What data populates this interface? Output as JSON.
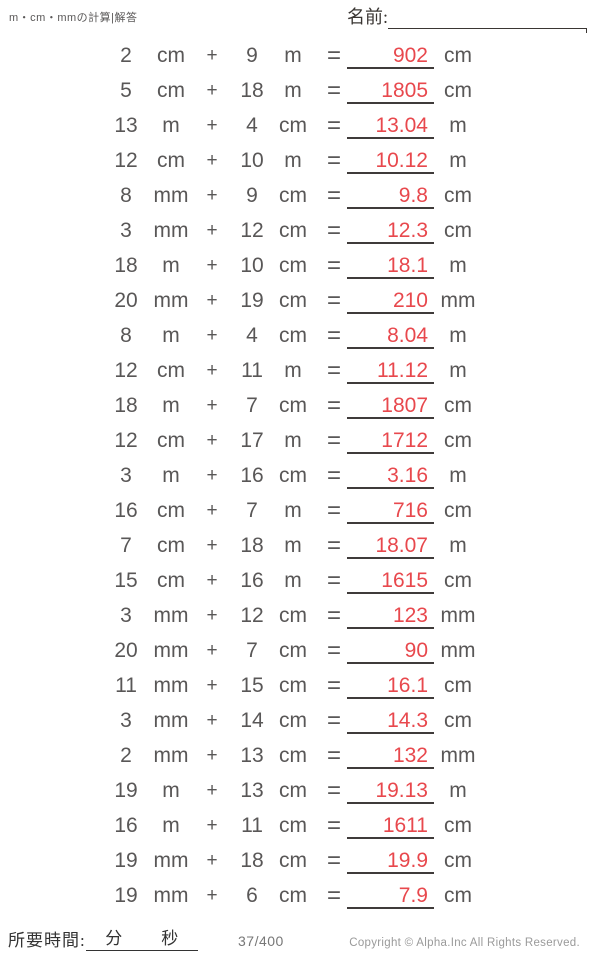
{
  "header": {
    "title": "m・cm・mmの計算|解答",
    "name_label": "名前:"
  },
  "symbols": {
    "plus": "+",
    "equals": "="
  },
  "colors": {
    "answer_red": "#e8484d",
    "problem_gray": "#595757",
    "line_dark": "#3f3b3a"
  },
  "problems": [
    {
      "n1": "2",
      "u1": "cm",
      "n2": "9",
      "u2": "m",
      "answer": "902",
      "u3": "cm"
    },
    {
      "n1": "5",
      "u1": "cm",
      "n2": "18",
      "u2": "m",
      "answer": "1805",
      "u3": "cm"
    },
    {
      "n1": "13",
      "u1": "m",
      "n2": "4",
      "u2": "cm",
      "answer": "13.04",
      "u3": "m"
    },
    {
      "n1": "12",
      "u1": "cm",
      "n2": "10",
      "u2": "m",
      "answer": "10.12",
      "u3": "m"
    },
    {
      "n1": "8",
      "u1": "mm",
      "n2": "9",
      "u2": "cm",
      "answer": "9.8",
      "u3": "cm"
    },
    {
      "n1": "3",
      "u1": "mm",
      "n2": "12",
      "u2": "cm",
      "answer": "12.3",
      "u3": "cm"
    },
    {
      "n1": "18",
      "u1": "m",
      "n2": "10",
      "u2": "cm",
      "answer": "18.1",
      "u3": "m"
    },
    {
      "n1": "20",
      "u1": "mm",
      "n2": "19",
      "u2": "cm",
      "answer": "210",
      "u3": "mm"
    },
    {
      "n1": "8",
      "u1": "m",
      "n2": "4",
      "u2": "cm",
      "answer": "8.04",
      "u3": "m"
    },
    {
      "n1": "12",
      "u1": "cm",
      "n2": "11",
      "u2": "m",
      "answer": "11.12",
      "u3": "m"
    },
    {
      "n1": "18",
      "u1": "m",
      "n2": "7",
      "u2": "cm",
      "answer": "1807",
      "u3": "cm"
    },
    {
      "n1": "12",
      "u1": "cm",
      "n2": "17",
      "u2": "m",
      "answer": "1712",
      "u3": "cm"
    },
    {
      "n1": "3",
      "u1": "m",
      "n2": "16",
      "u2": "cm",
      "answer": "3.16",
      "u3": "m"
    },
    {
      "n1": "16",
      "u1": "cm",
      "n2": "7",
      "u2": "m",
      "answer": "716",
      "u3": "cm"
    },
    {
      "n1": "7",
      "u1": "cm",
      "n2": "18",
      "u2": "m",
      "answer": "18.07",
      "u3": "m"
    },
    {
      "n1": "15",
      "u1": "cm",
      "n2": "16",
      "u2": "m",
      "answer": "1615",
      "u3": "cm"
    },
    {
      "n1": "3",
      "u1": "mm",
      "n2": "12",
      "u2": "cm",
      "answer": "123",
      "u3": "mm"
    },
    {
      "n1": "20",
      "u1": "mm",
      "n2": "7",
      "u2": "cm",
      "answer": "90",
      "u3": "mm"
    },
    {
      "n1": "11",
      "u1": "mm",
      "n2": "15",
      "u2": "cm",
      "answer": "16.1",
      "u3": "cm"
    },
    {
      "n1": "3",
      "u1": "mm",
      "n2": "14",
      "u2": "cm",
      "answer": "14.3",
      "u3": "cm"
    },
    {
      "n1": "2",
      "u1": "mm",
      "n2": "13",
      "u2": "cm",
      "answer": "132",
      "u3": "mm"
    },
    {
      "n1": "19",
      "u1": "m",
      "n2": "13",
      "u2": "cm",
      "answer": "19.13",
      "u3": "m"
    },
    {
      "n1": "16",
      "u1": "m",
      "n2": "11",
      "u2": "cm",
      "answer": "1611",
      "u3": "cm"
    },
    {
      "n1": "19",
      "u1": "mm",
      "n2": "18",
      "u2": "cm",
      "answer": "19.9",
      "u3": "cm"
    },
    {
      "n1": "19",
      "u1": "mm",
      "n2": "6",
      "u2": "cm",
      "answer": "7.9",
      "u3": "cm"
    }
  ],
  "footer": {
    "time_label": "所要時間:",
    "minutes_label": "分",
    "seconds_label": "秒",
    "page_number": "37/400",
    "copyright": "Copyright © Alpha.Inc All Rights Reserved."
  }
}
